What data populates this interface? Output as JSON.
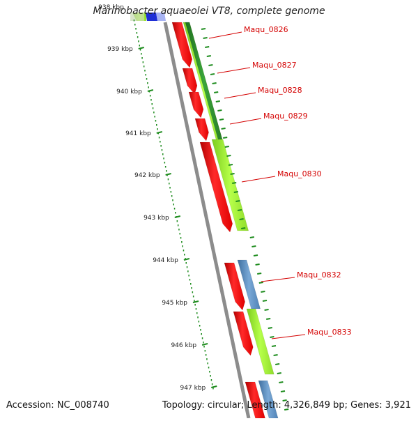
{
  "title": "Marinobacter aquaeolei VT8, complete genome",
  "ruler": {
    "start_kbp": 938,
    "tick_labels": [
      "938 kbp",
      "939 kbp",
      "940 kbp",
      "941 kbp",
      "942 kbp",
      "943 kbp",
      "944 kbp",
      "945 kbp",
      "946 kbp",
      "947 kbp"
    ]
  },
  "genes": [
    {
      "label": "Maqu_0826"
    },
    {
      "label": "Maqu_0827"
    },
    {
      "label": "Maqu_0828"
    },
    {
      "label": "Maqu_0829"
    },
    {
      "label": "Maqu_0830"
    },
    {
      "label": "Maqu_0832"
    },
    {
      "label": "Maqu_0833"
    }
  ],
  "colors": {
    "gene": "#ff1a1a",
    "backbone": "#8c8c8c",
    "tick": "#1e8c1e",
    "label": "#d40000",
    "track_light_green": "#a8f03c",
    "track_dark_green": "#2e8f2e",
    "track_blue": "#5b8fc6"
  },
  "footer": {
    "accession": "Accession: NC_008740",
    "summary": "Topology: circular; Length: 4,326,849 bp; Genes: 3,921"
  }
}
